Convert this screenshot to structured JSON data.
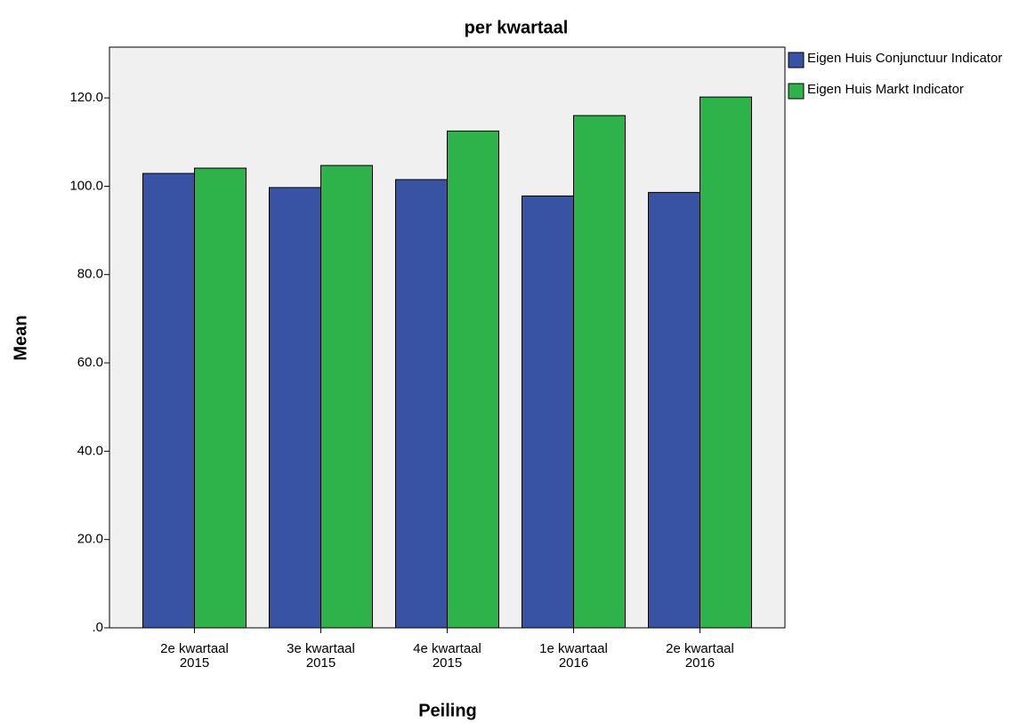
{
  "chart_data": {
    "type": "bar",
    "title": "per kwartaal",
    "x_label": "Peiling",
    "y_label": "Mean",
    "categories": [
      "2e kwartaal 2015",
      "3e kwartaal 2015",
      "4e kwartaal 2015",
      "1e kwartaal 2016",
      "2e kwartaal 2016"
    ],
    "series": [
      {
        "name": "Eigen Huis Conjunctuur Indicator",
        "color": "#3953a4",
        "values": [
          102.9,
          99.7,
          101.5,
          97.8,
          98.6
        ]
      },
      {
        "name": "Eigen Huis Markt Indicator",
        "color": "#2db34a",
        "values": [
          104.1,
          104.7,
          112.5,
          116.0,
          120.2
        ]
      }
    ],
    "ylim": [
      0,
      131.5
    ],
    "yticks": [
      {
        "value": 0,
        "label": ".0"
      },
      {
        "value": 20,
        "label": "20.0"
      },
      {
        "value": 40,
        "label": "40.0"
      },
      {
        "value": 60,
        "label": "60.0"
      },
      {
        "value": 80,
        "label": "80.0"
      },
      {
        "value": 100,
        "label": "100.0"
      },
      {
        "value": 120,
        "label": "120.0"
      }
    ],
    "grid": false,
    "legend": "right"
  }
}
